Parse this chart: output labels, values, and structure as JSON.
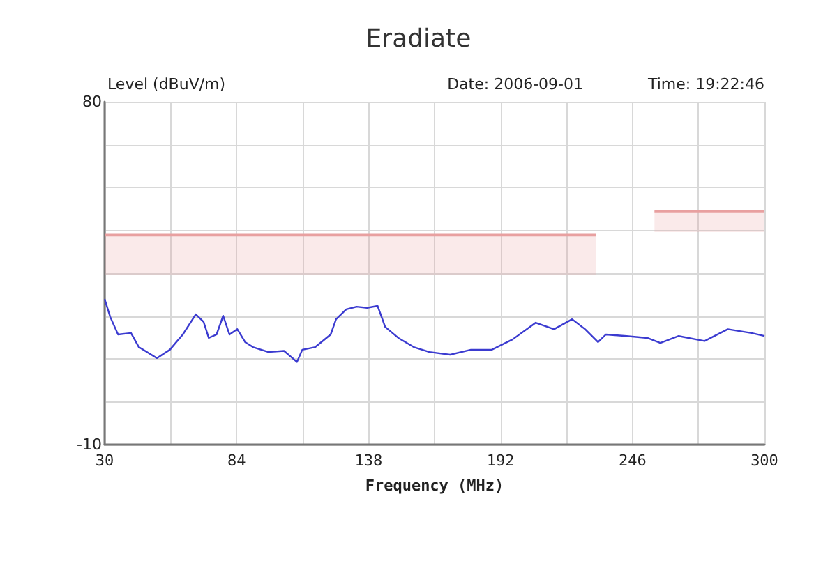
{
  "chart_data": {
    "type": "line",
    "title": "Eradiate",
    "ylabel": "Level (dBuV/m)",
    "xlabel": "Frequency (MHz)",
    "annotations": [
      "Date: 2006-09-01",
      "Time: 19:22:46"
    ],
    "xlim": [
      30,
      300
    ],
    "xticks": [
      30,
      {
        "value": 57,
        "label": null
      },
      84,
      {
        "value": 111,
        "label": null
      },
      138,
      {
        "value": 165,
        "label": null
      },
      192,
      {
        "value": 219,
        "label": null
      },
      246,
      {
        "value": 273,
        "label": null
      },
      300
    ],
    "ylim": [
      -10,
      80
    ],
    "yticks": [
      -10,
      {
        "value": 1.25,
        "label": null
      },
      {
        "value": 12.5,
        "label": null
      },
      {
        "value": 23.75,
        "label": null
      },
      {
        "value": 35,
        "label": null
      },
      {
        "value": 46.25,
        "label": null
      },
      {
        "value": 57.5,
        "label": null
      },
      {
        "value": 68.75,
        "label": null
      },
      80
    ],
    "grid": true,
    "series": [
      {
        "color": "#3b3bd0",
        "x": [
          30,
          32.3,
          35.5,
          40.8,
          44,
          51.4,
          56.7,
          62,
          67.3,
          70.5,
          72.6,
          75.8,
          78.5,
          81.1,
          84.3,
          87.5,
          90.7,
          97,
          103.4,
          108.7,
          110.9,
          116.2,
          122.5,
          124.7,
          128.9,
          133.1,
          137.4,
          141.7,
          144.8,
          150.2,
          156.5,
          162.9,
          171.4,
          179.9,
          188.4,
          196.9,
          206.4,
          213.9,
          221.3,
          226.6,
          231.9,
          235.1,
          243.6,
          252.1,
          257.4,
          264.9,
          275.5,
          285,
          294.7,
          300
        ],
        "values": [
          28.2,
          23.5,
          18.9,
          19.3,
          15.6,
          12.7,
          14.9,
          18.9,
          24.2,
          22.2,
          18,
          18.9,
          23.8,
          18.9,
          20.3,
          16.9,
          15.6,
          14.3,
          14.6,
          11.7,
          14.9,
          15.6,
          18.9,
          22.9,
          25.5,
          26.2,
          25.9,
          26.4,
          20.9,
          18,
          15.6,
          14.3,
          13.6,
          14.9,
          14.9,
          17.6,
          22,
          20.3,
          22.9,
          20.3,
          16.9,
          18.9,
          18.5,
          18,
          16.7,
          18.5,
          17.2,
          20.3,
          19.3,
          18.5
        ]
      },
      {
        "color": "#e8a0a0",
        "x": [
          30,
          231
        ],
        "values": [
          45,
          45
        ],
        "lower": [
          34.5,
          34.5
        ],
        "upper": [
          45,
          45
        ]
      },
      {
        "color": "#e8a0a0",
        "x": [
          255,
          300
        ],
        "values": [
          51.3,
          51.3
        ],
        "lower": [
          45.8,
          45.8
        ],
        "upper": [
          51.3,
          51.3
        ]
      }
    ]
  }
}
